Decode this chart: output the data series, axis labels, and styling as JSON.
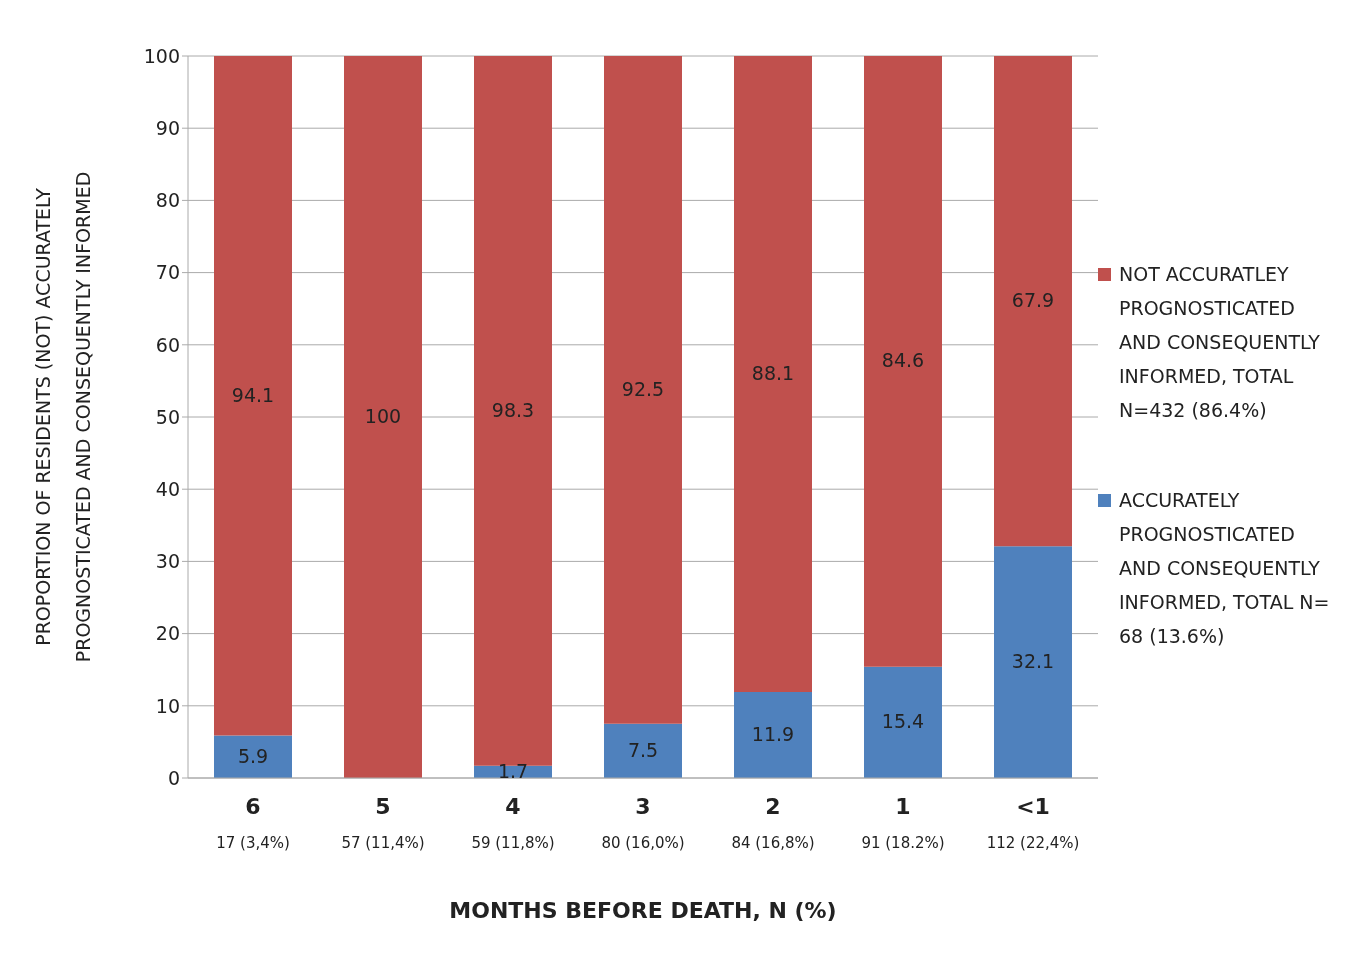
{
  "chart_data": {
    "type": "bar",
    "stacked": true,
    "categories": [
      "6\n17 (3,4%)",
      "5\n57 (11,4%)",
      "4\n59 (11,8%)",
      "3\n80 (16,0%)",
      "2\n84 (16,8%)",
      "1\n91 (18.2%)",
      "<1\n112 (22,4%)"
    ],
    "series": [
      {
        "name": "ACCURATELY PROGNOSTICATED AND CONSEQUENTLY INFORMED, TOTAL N= 68 (13.6%)",
        "color": "#4f81bd",
        "values": [
          5.9,
          0,
          1.7,
          7.5,
          11.9,
          15.4,
          32.1
        ],
        "value_labels": [
          "5.9",
          null,
          "1.7",
          "7.5",
          "11.9",
          "15.4",
          "32.1"
        ]
      },
      {
        "name": "NOT ACCURATLEY PROGNOSTICATED AND CONSEQUENTLY INFORMED, TOTAL N=432 (86.4%)",
        "color": "#c0504d",
        "values": [
          94.1,
          100,
          98.3,
          92.5,
          88.1,
          84.6,
          67.9
        ],
        "value_labels": [
          "94.1",
          "100",
          "98.3",
          "92.5",
          "88.1",
          "84.6",
          "67.9"
        ]
      }
    ],
    "ylim": [
      0,
      100
    ],
    "yticks": [
      0,
      10,
      20,
      30,
      40,
      50,
      60,
      70,
      80,
      90,
      100
    ],
    "ylabel": "PROPORTION OF RESIDENTS (NOT) ACCURATELY PROGNOSTICATED AND CONSEQUENTLY INFORMED",
    "xlabel": "MONTHS BEFORE DEATH, N (%)",
    "grid": "y",
    "legend": "right"
  }
}
